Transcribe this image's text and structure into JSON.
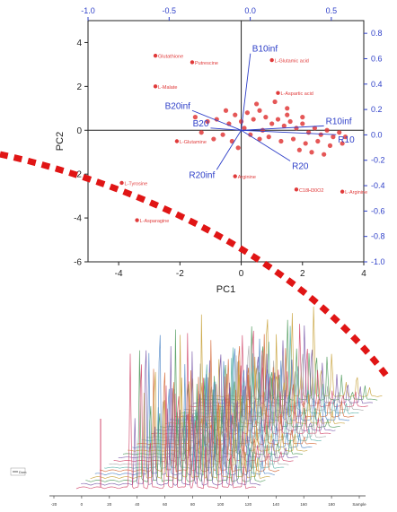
{
  "chart_data": [
    {
      "type": "scatter",
      "subtype": "pca-biplot",
      "xlabel": "PC1",
      "ylabel": "PC2",
      "xlim": [
        -5,
        4
      ],
      "ylim": [
        -6,
        5
      ],
      "xticks": [
        "-4",
        "-2",
        "0",
        "2",
        "4"
      ],
      "yticks": [
        "-6",
        "-4",
        "-2",
        "0",
        "2",
        "4"
      ],
      "loading_xlim": [
        -1.0,
        0.7
      ],
      "loading_ylim": [
        -1.0,
        0.9
      ],
      "top_ticks": [
        "-1.0",
        "-0.5",
        "0.0",
        "0.5"
      ],
      "right_ticks": [
        "0.8",
        "0.6",
        "0.4",
        "0.2",
        "0.0",
        "-0.2",
        "-0.4",
        "-0.6",
        "-0.8",
        "-1.0"
      ],
      "marker_color": "#e03a3a",
      "vector_color": "#2e3fc8",
      "axis_color": "#2e3fc8",
      "labeled_points": [
        {
          "label": "Glutathione",
          "x": -2.8,
          "y": 3.4
        },
        {
          "label": "Putrescine",
          "x": -1.6,
          "y": 3.1
        },
        {
          "label": "L-Malate",
          "x": -2.8,
          "y": 2.0
        },
        {
          "label": "L-Glutamic acid",
          "x": 1.0,
          "y": 3.2
        },
        {
          "label": "L-Aspartic acid",
          "x": 1.2,
          "y": 1.7
        },
        {
          "label": "Arginine",
          "x": -0.2,
          "y": -2.1
        },
        {
          "label": "C18H30O2",
          "x": 1.8,
          "y": -2.7
        },
        {
          "label": "L-Arginine",
          "x": 3.3,
          "y": -2.8
        },
        {
          "label": "L-Tyrosine",
          "x": -3.9,
          "y": -2.4
        },
        {
          "label": "L-Asparagine",
          "x": -3.4,
          "y": -4.1
        },
        {
          "label": "L-Glutamine",
          "x": -2.1,
          "y": -0.5
        }
      ],
      "unlabeled_points": [
        [
          -1.5,
          0.6
        ],
        [
          -1.1,
          0.4
        ],
        [
          -0.8,
          0.5
        ],
        [
          -0.5,
          0.9
        ],
        [
          -0.4,
          0.3
        ],
        [
          -0.2,
          0.7
        ],
        [
          0.0,
          0.4
        ],
        [
          0.2,
          0.8
        ],
        [
          0.4,
          0.5
        ],
        [
          0.6,
          0.9
        ],
        [
          0.8,
          0.6
        ],
        [
          1.0,
          0.3
        ],
        [
          1.2,
          0.5
        ],
        [
          1.4,
          0.2
        ],
        [
          1.6,
          0.4
        ],
        [
          1.8,
          0.1
        ],
        [
          2.0,
          0.3
        ],
        [
          2.2,
          -0.1
        ],
        [
          2.4,
          0.1
        ],
        [
          2.6,
          -0.2
        ],
        [
          2.8,
          0.0
        ],
        [
          3.0,
          -0.3
        ],
        [
          3.2,
          -0.1
        ],
        [
          3.4,
          -0.3
        ],
        [
          0.3,
          -0.2
        ],
        [
          0.6,
          -0.4
        ],
        [
          0.9,
          -0.3
        ],
        [
          1.3,
          -0.5
        ],
        [
          1.7,
          -0.4
        ],
        [
          2.1,
          -0.6
        ],
        [
          2.5,
          -0.5
        ],
        [
          2.9,
          -0.7
        ],
        [
          3.3,
          -0.6
        ],
        [
          -0.9,
          -0.4
        ],
        [
          -0.6,
          -0.2
        ],
        [
          -0.3,
          -0.5
        ],
        [
          0.1,
          0.1
        ],
        [
          1.1,
          1.3
        ],
        [
          1.5,
          1.0
        ],
        [
          0.5,
          1.2
        ],
        [
          1.9,
          -0.9
        ],
        [
          2.3,
          -1.0
        ],
        [
          2.7,
          -1.1
        ],
        [
          -1.3,
          -0.1
        ],
        [
          0.7,
          0.0
        ],
        [
          1.5,
          0.7
        ],
        [
          2.0,
          0.6
        ],
        [
          -0.1,
          -0.8
        ]
      ],
      "vectors": [
        {
          "label": "B10inf",
          "x": 0.3,
          "y": 3.5
        },
        {
          "label": "B20inf",
          "x": -1.6,
          "y": 0.9
        },
        {
          "label": "B20",
          "x": -1.0,
          "y": 0.1
        },
        {
          "label": "R10inf",
          "x": 2.7,
          "y": 0.2
        },
        {
          "label": "R10",
          "x": 3.1,
          "y": -0.2
        },
        {
          "label": "R20",
          "x": 1.6,
          "y": -1.4
        },
        {
          "label": "R20inf",
          "x": -0.8,
          "y": -1.8
        }
      ]
    },
    {
      "type": "line",
      "subtype": "stacked-chromatograms-3d",
      "x_ticks": [
        "-20",
        "0",
        "20",
        "40",
        "60",
        "80",
        "100",
        "120",
        "140",
        "160",
        "180",
        "Sample"
      ],
      "legend_label": "Dom",
      "palette": [
        "#d24a6e",
        "#7a5aa8",
        "#4f9a5c",
        "#c8a23a",
        "#4f86c6",
        "#d46a3a",
        "#5ab3a8",
        "#a8a8a8"
      ]
    }
  ],
  "decoration": {
    "arc_color": "#e01515"
  }
}
